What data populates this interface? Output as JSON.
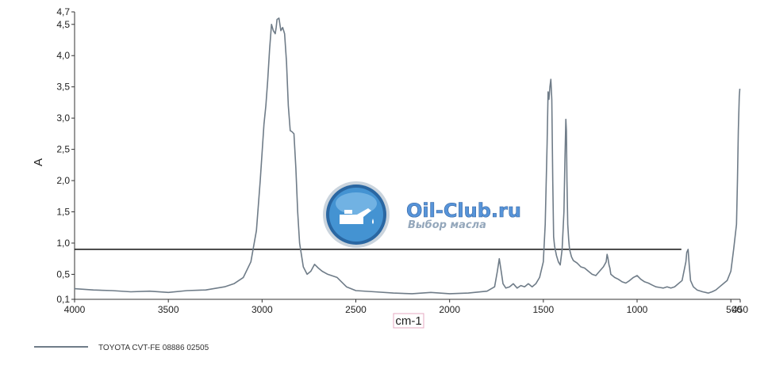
{
  "chart_data": {
    "type": "line",
    "title": "",
    "xlabel": "cm-1",
    "ylabel": "A",
    "xlim": [
      4000,
      450
    ],
    "ylim": [
      0.1,
      4.7
    ],
    "x_reversed": true,
    "grid": false,
    "x_ticks": [
      "4000",
      "3500",
      "3000",
      "2500",
      "2000",
      "1500",
      "1000",
      "500",
      "450"
    ],
    "y_ticks": [
      "0,1",
      "0,5",
      "1,0",
      "1,5",
      "2,0",
      "2,5",
      "3,0",
      "3,5",
      "4,0",
      "4,5",
      "4,7"
    ],
    "legend_position": "bottom-left",
    "reference_line": {
      "y": 0.9,
      "x_from": 4000,
      "x_to": 764
    },
    "series": [
      {
        "name": "TOYOTA CVT-FE 08886 02505",
        "color": "#6f7c88",
        "x": [
          4000,
          3900,
          3800,
          3700,
          3600,
          3500,
          3400,
          3300,
          3200,
          3150,
          3100,
          3060,
          3030,
          3010,
          2990,
          2980,
          2970,
          2960,
          2950,
          2940,
          2930,
          2925,
          2920,
          2910,
          2900,
          2890,
          2880,
          2870,
          2860,
          2850,
          2840,
          2830,
          2820,
          2810,
          2800,
          2780,
          2760,
          2740,
          2720,
          2700,
          2680,
          2650,
          2600,
          2550,
          2500,
          2400,
          2300,
          2200,
          2100,
          2000,
          1900,
          1800,
          1760,
          1745,
          1735,
          1725,
          1715,
          1700,
          1680,
          1660,
          1640,
          1620,
          1600,
          1580,
          1560,
          1540,
          1520,
          1500,
          1490,
          1480,
          1475,
          1470,
          1465,
          1460,
          1455,
          1450,
          1445,
          1440,
          1430,
          1420,
          1410,
          1400,
          1390,
          1385,
          1380,
          1377,
          1374,
          1370,
          1365,
          1360,
          1350,
          1340,
          1320,
          1300,
          1280,
          1260,
          1240,
          1220,
          1200,
          1180,
          1165,
          1160,
          1155,
          1150,
          1145,
          1140,
          1120,
          1100,
          1080,
          1060,
          1040,
          1020,
          1000,
          980,
          960,
          940,
          920,
          900,
          880,
          860,
          840,
          820,
          800,
          780,
          760,
          740,
          735,
          728,
          722,
          715,
          700,
          680,
          650,
          620,
          600,
          580,
          560,
          540,
          520,
          500,
          485,
          470,
          465,
          460,
          455,
          452
        ],
        "values": [
          0.27,
          0.25,
          0.24,
          0.22,
          0.23,
          0.21,
          0.24,
          0.25,
          0.3,
          0.35,
          0.45,
          0.7,
          1.2,
          2.0,
          2.9,
          3.2,
          3.6,
          4.1,
          4.5,
          4.4,
          4.35,
          4.45,
          4.58,
          4.6,
          4.4,
          4.45,
          4.35,
          3.9,
          3.2,
          2.8,
          2.78,
          2.75,
          2.2,
          1.5,
          1.0,
          0.62,
          0.5,
          0.55,
          0.66,
          0.6,
          0.55,
          0.5,
          0.45,
          0.3,
          0.24,
          0.22,
          0.2,
          0.19,
          0.21,
          0.19,
          0.2,
          0.23,
          0.3,
          0.55,
          0.75,
          0.55,
          0.35,
          0.28,
          0.3,
          0.35,
          0.28,
          0.32,
          0.3,
          0.35,
          0.3,
          0.35,
          0.45,
          0.7,
          1.3,
          2.6,
          3.42,
          3.3,
          3.5,
          3.62,
          3.3,
          2.0,
          1.1,
          0.95,
          0.8,
          0.7,
          0.65,
          0.9,
          1.5,
          2.3,
          2.98,
          2.8,
          2.0,
          1.3,
          1.05,
          0.9,
          0.78,
          0.72,
          0.68,
          0.62,
          0.6,
          0.55,
          0.5,
          0.48,
          0.55,
          0.62,
          0.7,
          0.82,
          0.75,
          0.65,
          0.6,
          0.5,
          0.45,
          0.42,
          0.38,
          0.36,
          0.4,
          0.45,
          0.48,
          0.42,
          0.38,
          0.36,
          0.33,
          0.3,
          0.29,
          0.28,
          0.3,
          0.28,
          0.3,
          0.35,
          0.4,
          0.7,
          0.85,
          0.9,
          0.65,
          0.4,
          0.3,
          0.25,
          0.22,
          0.2,
          0.22,
          0.25,
          0.3,
          0.35,
          0.4,
          0.55,
          0.9,
          1.3,
          2.0,
          2.8,
          3.35,
          3.47
        ]
      }
    ]
  },
  "watermark": {
    "title": "Oil-Club.ru",
    "subtitle": "Выбор масла",
    "icon": "oil-can-icon",
    "accent": "#4f8fd8"
  }
}
